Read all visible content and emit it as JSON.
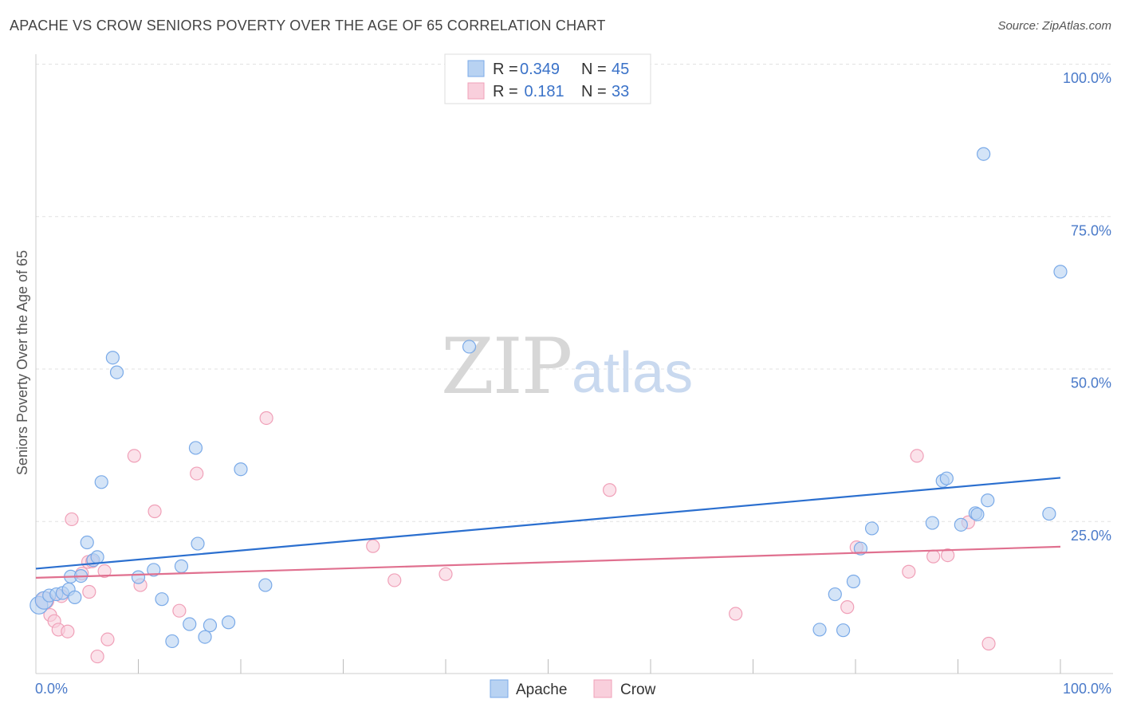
{
  "header": {
    "title": "APACHE VS CROW SENIORS POVERTY OVER THE AGE OF 65 CORRELATION CHART",
    "source": "Source: ZipAtlas.com"
  },
  "watermark": {
    "part1": "ZIP",
    "part2": "atlas"
  },
  "legend": {
    "r_label": "R =",
    "n_label": "N =",
    "rows": [
      {
        "r": "0.349",
        "n": "45"
      },
      {
        "r": " 0.181",
        "n": "33"
      }
    ]
  },
  "chart_data": {
    "type": "scatter",
    "ylabel": "Seniors Poverty Over the Age of 65",
    "xlabel": "",
    "xlim": [
      0,
      100
    ],
    "ylim": [
      0,
      100
    ],
    "x_tick_labels": [
      "0.0%",
      "100.0%"
    ],
    "y_tick_labels": [
      "100.0%",
      "75.0%",
      "50.0%",
      "25.0%"
    ],
    "y_ticks": [
      100,
      75,
      50,
      25
    ],
    "grid": true,
    "legend_position": "top-center",
    "series": [
      {
        "name": "Apache",
        "color": "#7aaae8",
        "fill": "#b8d2f2",
        "trend": {
          "color": "#2b6fcf",
          "x": [
            0,
            100
          ],
          "y": [
            17.2,
            32.1
          ]
        },
        "points": [
          [
            0.3,
            11.2
          ],
          [
            0.8,
            12.0
          ],
          [
            1.3,
            12.8
          ],
          [
            2.0,
            13.0
          ],
          [
            2.6,
            13.2
          ],
          [
            3.2,
            13.8
          ],
          [
            3.4,
            15.9
          ],
          [
            3.8,
            12.5
          ],
          [
            4.4,
            16.0
          ],
          [
            5.0,
            21.5
          ],
          [
            5.6,
            18.6
          ],
          [
            6.0,
            19.1
          ],
          [
            6.4,
            31.4
          ],
          [
            7.5,
            51.8
          ],
          [
            7.9,
            49.4
          ],
          [
            10.0,
            15.8
          ],
          [
            11.5,
            17.0
          ],
          [
            12.3,
            12.2
          ],
          [
            13.3,
            5.3
          ],
          [
            14.2,
            17.6
          ],
          [
            15.0,
            8.1
          ],
          [
            15.6,
            37.0
          ],
          [
            15.8,
            21.3
          ],
          [
            16.5,
            6.0
          ],
          [
            17.0,
            7.9
          ],
          [
            18.8,
            8.4
          ],
          [
            20.0,
            33.5
          ],
          [
            22.4,
            14.5
          ],
          [
            42.3,
            53.6
          ],
          [
            76.5,
            7.2
          ],
          [
            78.0,
            13.0
          ],
          [
            78.8,
            7.1
          ],
          [
            79.8,
            15.1
          ],
          [
            80.5,
            20.5
          ],
          [
            81.6,
            23.8
          ],
          [
            87.5,
            24.7
          ],
          [
            88.5,
            31.6
          ],
          [
            88.9,
            32.0
          ],
          [
            90.3,
            24.4
          ],
          [
            91.7,
            26.3
          ],
          [
            91.9,
            26.1
          ],
          [
            92.5,
            85.2
          ],
          [
            92.9,
            28.4
          ],
          [
            98.9,
            26.2
          ],
          [
            100.0,
            65.9
          ]
        ]
      },
      {
        "name": "Crow",
        "color": "#f0a0b8",
        "fill": "#f9cfdc",
        "trend": {
          "color": "#e0708f",
          "x": [
            0,
            100
          ],
          "y": [
            15.7,
            20.8
          ]
        },
        "points": [
          [
            0.9,
            12.0
          ],
          [
            1.4,
            9.6
          ],
          [
            1.8,
            8.6
          ],
          [
            2.2,
            7.2
          ],
          [
            2.5,
            12.7
          ],
          [
            3.1,
            6.9
          ],
          [
            3.5,
            25.3
          ],
          [
            4.5,
            16.4
          ],
          [
            5.1,
            18.3
          ],
          [
            5.2,
            13.4
          ],
          [
            5.5,
            18.4
          ],
          [
            6.0,
            2.8
          ],
          [
            6.7,
            16.8
          ],
          [
            7.0,
            5.6
          ],
          [
            9.6,
            35.7
          ],
          [
            10.2,
            14.5
          ],
          [
            11.6,
            26.6
          ],
          [
            14.0,
            10.3
          ],
          [
            15.7,
            32.8
          ],
          [
            22.5,
            41.9
          ],
          [
            32.9,
            20.9
          ],
          [
            35.0,
            15.3
          ],
          [
            40.0,
            16.3
          ],
          [
            56.0,
            30.1
          ],
          [
            68.3,
            9.8
          ],
          [
            79.2,
            10.9
          ],
          [
            80.1,
            20.7
          ],
          [
            85.2,
            16.7
          ],
          [
            86.0,
            35.7
          ],
          [
            87.6,
            19.2
          ],
          [
            89.0,
            19.4
          ],
          [
            91.0,
            24.8
          ],
          [
            93.0,
            4.9
          ]
        ]
      }
    ]
  }
}
